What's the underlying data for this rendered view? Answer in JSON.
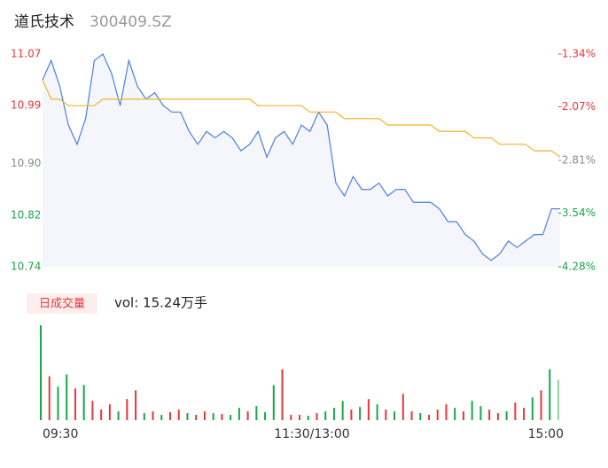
{
  "chart_data": [
    {
      "type": "line",
      "title": "道氏技术",
      "subtitle": "300409.SZ",
      "x": [
        0,
        4,
        8,
        12,
        16,
        20,
        24,
        28,
        32,
        36,
        40,
        44,
        48,
        52,
        56,
        60,
        64,
        68,
        72,
        76,
        80,
        84,
        88,
        92,
        96,
        100,
        104,
        108,
        112,
        116,
        120,
        124,
        128,
        132,
        136,
        140,
        144,
        148,
        152,
        156,
        160,
        164,
        168,
        172,
        176,
        180,
        184,
        188,
        192,
        196,
        200,
        204,
        208,
        212,
        216,
        220,
        224,
        228,
        232,
        236,
        240
      ],
      "xlim": [
        0,
        240
      ],
      "xticks": [
        {
          "value": 0,
          "label": "09:30"
        },
        {
          "value": 120,
          "label": "11:30/13:00"
        },
        {
          "value": 240,
          "label": "15:00"
        }
      ],
      "ylim": [
        10.74,
        11.07
      ],
      "yticks": [
        11.07,
        10.99,
        {
          "value": 10.9,
          "label": "10.90"
        },
        10.82,
        10.74
      ],
      "ytick_colors": [
        "#e8363b",
        "#e8363b",
        "#888888",
        "#1aa54b",
        "#1aa54b"
      ],
      "y2lim": [
        -4.28,
        -1.34
      ],
      "y2ticks": [
        {
          "value": -1.34,
          "label": "-1.34%"
        },
        {
          "value": -2.07,
          "label": "-2.07%"
        },
        {
          "value": -2.81,
          "label": "-2.81%"
        },
        {
          "value": -3.54,
          "label": "-3.54%"
        },
        {
          "value": -4.28,
          "label": "-4.28%"
        }
      ],
      "series": [
        {
          "color": "#4a7fe0",
          "values": [
            11.03,
            11.06,
            11.02,
            10.96,
            10.93,
            10.97,
            11.06,
            11.07,
            11.04,
            10.99,
            11.06,
            11.02,
            11.0,
            11.01,
            10.99,
            10.98,
            10.98,
            10.95,
            10.93,
            10.95,
            10.94,
            10.95,
            10.94,
            10.92,
            10.93,
            10.95,
            10.91,
            10.94,
            10.95,
            10.93,
            10.96,
            10.95,
            10.98,
            10.96,
            10.87,
            10.85,
            10.88,
            10.86,
            10.86,
            10.87,
            10.85,
            10.86,
            10.86,
            10.84,
            10.84,
            10.84,
            10.83,
            10.81,
            10.81,
            10.79,
            10.78,
            10.76,
            10.75,
            10.76,
            10.78,
            10.77,
            10.78,
            10.79,
            10.79,
            10.83,
            10.83
          ]
        },
        {
          "color": "#f5b12b",
          "values": [
            11.03,
            11.0,
            11.0,
            10.99,
            10.99,
            10.99,
            10.99,
            11.0,
            11.0,
            11.0,
            11.0,
            11.0,
            11.0,
            11.0,
            11.0,
            11.0,
            11.0,
            11.0,
            11.0,
            11.0,
            11.0,
            11.0,
            11.0,
            11.0,
            11.0,
            10.99,
            10.99,
            10.99,
            10.99,
            10.99,
            10.99,
            10.98,
            10.98,
            10.98,
            10.98,
            10.97,
            10.97,
            10.97,
            10.97,
            10.97,
            10.96,
            10.96,
            10.96,
            10.96,
            10.96,
            10.96,
            10.95,
            10.95,
            10.95,
            10.95,
            10.94,
            10.94,
            10.94,
            10.93,
            10.93,
            10.93,
            10.93,
            10.92,
            10.92,
            10.92,
            10.91
          ]
        }
      ]
    },
    {
      "type": "bar",
      "title": "日成交量",
      "annotation": "vol: 15.24万手",
      "x": [
        0,
        4,
        8,
        12,
        16,
        20,
        24,
        28,
        32,
        36,
        40,
        44,
        48,
        52,
        56,
        60,
        64,
        68,
        72,
        76,
        80,
        84,
        88,
        92,
        96,
        100,
        104,
        108,
        112,
        116,
        120,
        124,
        128,
        132,
        136,
        140,
        144,
        148,
        152,
        156,
        160,
        164,
        168,
        172,
        176,
        180,
        184,
        188,
        192,
        196,
        200,
        204,
        208,
        212,
        216,
        220,
        224,
        228,
        232,
        236,
        240
      ],
      "xlim": [
        0,
        240
      ],
      "ylim": [
        0,
        110
      ],
      "values": [
        108,
        50,
        38,
        52,
        36,
        40,
        22,
        12,
        18,
        10,
        24,
        34,
        8,
        10,
        6,
        9,
        12,
        8,
        6,
        10,
        8,
        7,
        6,
        14,
        10,
        16,
        9,
        40,
        58,
        6,
        6,
        5,
        8,
        10,
        14,
        22,
        12,
        15,
        24,
        18,
        12,
        10,
        30,
        10,
        8,
        6,
        12,
        18,
        14,
        10,
        22,
        16,
        12,
        8,
        10,
        20,
        14,
        26,
        34,
        58,
        46
      ],
      "bar_colors": [
        "#1aa54b",
        "#e8363b",
        "#1aa54b",
        "#1aa54b",
        "#e8363b",
        "#1aa54b",
        "#e8363b",
        "#e8363b",
        "#e8363b",
        "#1aa54b",
        "#e8363b",
        "#e8363b",
        "#1aa54b",
        "#e8363b",
        "#1aa54b",
        "#e8363b",
        "#e8363b",
        "#1aa54b",
        "#e8363b",
        "#e8363b",
        "#1aa54b",
        "#e8363b",
        "#1aa54b",
        "#1aa54b",
        "#e8363b",
        "#1aa54b",
        "#1aa54b",
        "#1aa54b",
        "#e8363b",
        "#e8363b",
        "#e8363b",
        "#1aa54b",
        "#e8363b",
        "#1aa54b",
        "#1aa54b",
        "#1aa54b",
        "#e8363b",
        "#1aa54b",
        "#e8363b",
        "#1aa54b",
        "#e8363b",
        "#1aa54b",
        "#e8363b",
        "#e8363b",
        "#1aa54b",
        "#e8363b",
        "#e8363b",
        "#e8363b",
        "#1aa54b",
        "#e8363b",
        "#1aa54b",
        "#1aa54b",
        "#e8363b",
        "#e8363b",
        "#1aa54b",
        "#e8363b",
        "#e8363b",
        "#1aa54b",
        "#e8363b",
        "#1aa54b",
        "#8fd3a0"
      ]
    }
  ]
}
